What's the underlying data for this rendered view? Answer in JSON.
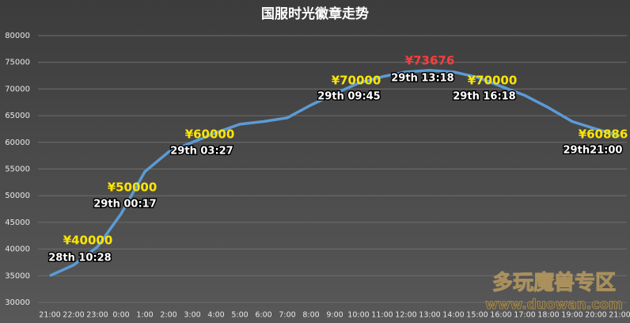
{
  "chart_data": {
    "type": "line",
    "title": "国服时光徽章走势",
    "categories": [
      "21:00",
      "22:00",
      "23:00",
      "0:00",
      "1:00",
      "2:00",
      "3:00",
      "4:00",
      "5:00",
      "6:00",
      "7:00",
      "8:00",
      "9:00",
      "10:00",
      "11:00",
      "12:00",
      "13:00",
      "14:00",
      "15:00",
      "16:00",
      "17:00",
      "18:00",
      "19:00",
      "20:00",
      "21:00"
    ],
    "series": [
      {
        "name": "国服时光徽章",
        "color": "#5b9bd5",
        "values": [
          35000,
          37000,
          40400,
          46600,
          54500,
          58200,
          60000,
          61800,
          63400,
          63900,
          64600,
          67000,
          69100,
          71100,
          72300,
          73200,
          73500,
          73200,
          72200,
          70500,
          68800,
          66500,
          63900,
          62500,
          61200
        ]
      }
    ],
    "ylim": [
      30000,
      80000
    ],
    "yticks": [
      30000,
      35000,
      40000,
      45000,
      50000,
      55000,
      60000,
      65000,
      70000,
      75000,
      80000
    ],
    "grid": true,
    "annotations": [
      {
        "price": "¥40000",
        "time": "28th 10:28",
        "color": "#ffe600"
      },
      {
        "price": "¥50000",
        "time": "29th 00:17",
        "color": "#ffe600"
      },
      {
        "price": "¥60000",
        "time": "29th 03:27",
        "color": "#ffe600"
      },
      {
        "price": "¥70000",
        "time": "29th 09:45",
        "color": "#ffe600"
      },
      {
        "price": "¥73676",
        "time": "29th 13:18",
        "color": "#ff3b3b"
      },
      {
        "price": "¥70000",
        "time": "29th 16:18",
        "color": "#ffe600"
      },
      {
        "price": "¥60886",
        "time": "29th21:00",
        "color": "#ffe600"
      }
    ],
    "watermark": {
      "title": "多玩魔兽专区",
      "url": "www.duowan.com"
    }
  }
}
